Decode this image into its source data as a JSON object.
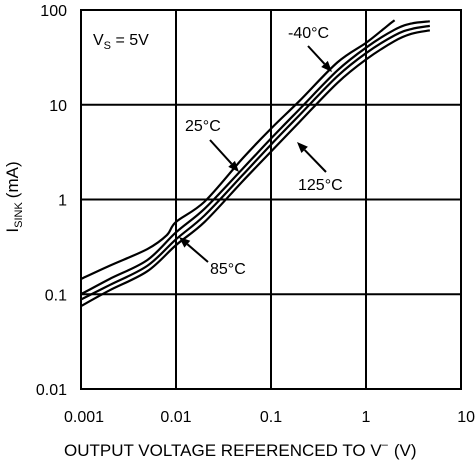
{
  "chart_data": {
    "type": "line",
    "title": "",
    "xlabel_main": "OUTPUT VOLTAGE REFERENCED TO V",
    "xlabel_sup": "–",
    "xlabel_unit": "(V)",
    "ylabel_main": "I",
    "ylabel_sub": "SINK",
    "ylabel_unit": "(mA)",
    "x_scale": "log",
    "y_scale": "log",
    "xlim": [
      0.001,
      10
    ],
    "ylim": [
      0.01,
      100
    ],
    "grid": true,
    "x_ticks": [
      {
        "value": 0.001,
        "label": "0.001"
      },
      {
        "value": 0.01,
        "label": "0.01"
      },
      {
        "value": 0.1,
        "label": "0.1"
      },
      {
        "value": 1,
        "label": "1"
      },
      {
        "value": 10,
        "label": "10"
      }
    ],
    "y_ticks": [
      {
        "value": 0.01,
        "label": "0.01"
      },
      {
        "value": 0.1,
        "label": "0.1"
      },
      {
        "value": 1,
        "label": "1"
      },
      {
        "value": 10,
        "label": "10"
      },
      {
        "value": 100,
        "label": "100"
      }
    ],
    "condition": {
      "main": "V",
      "sub": "S",
      "rest": " = 5V"
    },
    "series": [
      {
        "name": "-40°C",
        "points": [
          [
            0.001,
            0.145
          ],
          [
            0.002,
            0.2
          ],
          [
            0.005,
            0.3
          ],
          [
            0.008,
            0.42
          ],
          [
            0.01,
            0.58
          ],
          [
            0.02,
            0.95
          ],
          [
            0.05,
            2.7
          ],
          [
            0.1,
            5.6
          ],
          [
            0.2,
            11
          ],
          [
            0.5,
            28
          ],
          [
            1,
            45
          ],
          [
            1.5,
            62
          ],
          [
            1.8,
            72
          ],
          [
            2,
            78
          ]
        ]
      },
      {
        "name": "25°C",
        "points": [
          [
            0.001,
            0.1
          ],
          [
            0.002,
            0.145
          ],
          [
            0.005,
            0.23
          ],
          [
            0.01,
            0.45
          ],
          [
            0.02,
            0.8
          ],
          [
            0.05,
            2.1
          ],
          [
            0.1,
            4.4
          ],
          [
            0.2,
            9
          ],
          [
            0.5,
            23
          ],
          [
            1,
            40
          ],
          [
            2,
            62
          ],
          [
            3,
            72
          ],
          [
            4.7,
            76
          ]
        ]
      },
      {
        "name": "85°C",
        "points": [
          [
            0.001,
            0.088
          ],
          [
            0.002,
            0.125
          ],
          [
            0.005,
            0.2
          ],
          [
            0.01,
            0.38
          ],
          [
            0.02,
            0.68
          ],
          [
            0.05,
            1.8
          ],
          [
            0.1,
            3.8
          ],
          [
            0.2,
            7.8
          ],
          [
            0.5,
            20
          ],
          [
            1,
            35
          ],
          [
            2,
            54
          ],
          [
            3,
            63
          ],
          [
            4.7,
            68
          ]
        ]
      },
      {
        "name": "125°C",
        "points": [
          [
            0.001,
            0.075
          ],
          [
            0.002,
            0.11
          ],
          [
            0.005,
            0.175
          ],
          [
            0.01,
            0.33
          ],
          [
            0.02,
            0.58
          ],
          [
            0.05,
            1.55
          ],
          [
            0.1,
            3.2
          ],
          [
            0.2,
            6.6
          ],
          [
            0.5,
            17
          ],
          [
            1,
            30
          ],
          [
            2,
            47
          ],
          [
            3,
            56
          ],
          [
            4.7,
            61
          ]
        ]
      }
    ],
    "annotations": [
      {
        "text": "-40°C",
        "series": "-40°C"
      },
      {
        "text": "25°C",
        "series": "25°C"
      },
      {
        "text": "85°C",
        "series": "85°C"
      },
      {
        "text": "125°C",
        "series": "125°C"
      }
    ]
  }
}
